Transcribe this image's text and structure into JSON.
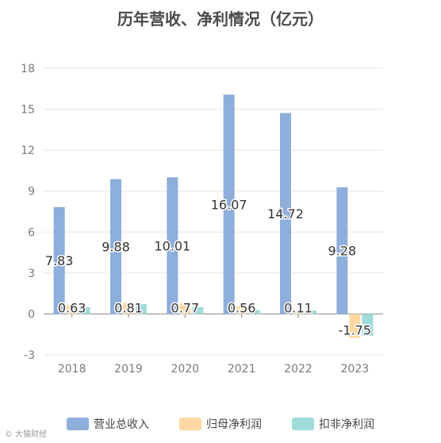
{
  "chart_data": {
    "type": "bar",
    "title": "历年营收、净利情况（亿元）",
    "categories": [
      "2018",
      "2019",
      "2020",
      "2021",
      "2022",
      "2023"
    ],
    "series": [
      {
        "name": "营业总收入",
        "color": "#8eaedb",
        "values": [
          7.83,
          9.88,
          10.01,
          16.07,
          14.72,
          9.28
        ],
        "labels": [
          "7.83",
          "9.88",
          "10.01",
          "16.07",
          "14.72",
          "9.28"
        ]
      },
      {
        "name": "归母净利润",
        "color": "#fdd8a2",
        "values": [
          0.63,
          0.81,
          0.77,
          0.56,
          0.11,
          -1.75
        ],
        "labels": [
          "0.63",
          "0.81",
          "0.77",
          "0.56",
          "0.11",
          "-1.75"
        ]
      },
      {
        "name": "扣非净利润",
        "color": "#9edbd9",
        "values": [
          0.5,
          0.72,
          0.5,
          0.3,
          0.25,
          -1.6
        ],
        "labels": [
          "",
          "",
          "",
          "",
          "",
          ""
        ]
      }
    ],
    "yticks": [
      -3,
      0,
      3,
      6,
      9,
      12,
      15,
      18
    ],
    "ylim": [
      -3,
      18
    ],
    "grid": true,
    "legend": "bottom"
  },
  "watermark": "© 大猫财经"
}
